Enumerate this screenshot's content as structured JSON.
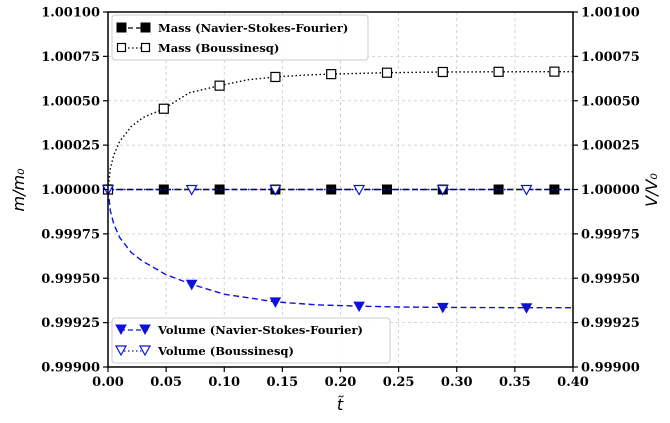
{
  "chart_data": {
    "type": "line",
    "xlabel": "t̃",
    "ylabel_left": "m/m₀",
    "ylabel_right": "V/V₀",
    "xlim": [
      0.0,
      0.4
    ],
    "ylim": [
      0.999,
      1.001
    ],
    "x_ticks": [
      "0.00",
      "0.05",
      "0.10",
      "0.15",
      "0.20",
      "0.25",
      "0.30",
      "0.35",
      "0.40"
    ],
    "y_ticks": [
      "0.99900",
      "0.99925",
      "0.99950",
      "0.99975",
      "1.00000",
      "1.00025",
      "1.00050",
      "1.00075",
      "1.00100"
    ],
    "grid": true,
    "legend_top": [
      "Mass (Navier-Stokes-Fourier)",
      "Mass (Boussinesq)"
    ],
    "legend_bottom": [
      "Volume (Navier-Stokes-Fourier)",
      "Volume (Boussinesq)"
    ],
    "series": [
      {
        "name": "Mass (Navier-Stokes-Fourier)",
        "color": "#000000",
        "marker": "square-filled",
        "line": "dashed",
        "curve": [
          [
            0.0,
            1.0
          ],
          [
            0.4,
            1.0
          ]
        ],
        "points": [
          [
            0.0,
            1.0
          ],
          [
            0.048,
            1.0
          ],
          [
            0.096,
            1.0
          ],
          [
            0.144,
            1.0
          ],
          [
            0.192,
            1.0
          ],
          [
            0.24,
            1.0
          ],
          [
            0.288,
            1.0
          ],
          [
            0.336,
            1.0
          ],
          [
            0.384,
            1.0
          ]
        ]
      },
      {
        "name": "Mass (Boussinesq)",
        "color": "#000000",
        "marker": "square-open",
        "line": "dotted",
        "curve": [
          [
            0.0,
            1.0
          ],
          [
            0.002,
            1.000118
          ],
          [
            0.005,
            1.000195
          ],
          [
            0.01,
            1.00027
          ],
          [
            0.02,
            1.000355
          ],
          [
            0.03,
            1.000405
          ],
          [
            0.048,
            1.000455
          ],
          [
            0.07,
            1.000545
          ],
          [
            0.096,
            1.000585
          ],
          [
            0.12,
            1.000618
          ],
          [
            0.144,
            1.000634
          ],
          [
            0.17,
            1.000645
          ],
          [
            0.192,
            1.00065
          ],
          [
            0.24,
            1.000658
          ],
          [
            0.288,
            1.000662
          ],
          [
            0.336,
            1.000663
          ],
          [
            0.384,
            1.000664
          ],
          [
            0.4,
            1.000664
          ]
        ],
        "points": [
          [
            0.0,
            1.0
          ],
          [
            0.048,
            1.000455
          ],
          [
            0.096,
            1.000585
          ],
          [
            0.144,
            1.000634
          ],
          [
            0.192,
            1.00065
          ],
          [
            0.24,
            1.000658
          ],
          [
            0.288,
            1.000662
          ],
          [
            0.336,
            1.000663
          ],
          [
            0.384,
            1.000664
          ]
        ]
      },
      {
        "name": "Volume (Navier-Stokes-Fourier)",
        "color": "#1010dd",
        "marker": "triangle-down-filled",
        "line": "dashed",
        "curve": [
          [
            0.0,
            1.0
          ],
          [
            0.002,
            0.99988
          ],
          [
            0.005,
            0.999805
          ],
          [
            0.01,
            0.99973
          ],
          [
            0.02,
            0.999645
          ],
          [
            0.03,
            0.999595
          ],
          [
            0.05,
            0.99952
          ],
          [
            0.072,
            0.999466
          ],
          [
            0.1,
            0.99941
          ],
          [
            0.144,
            0.999367
          ],
          [
            0.18,
            0.99935
          ],
          [
            0.216,
            0.999343
          ],
          [
            0.25,
            0.999338
          ],
          [
            0.288,
            0.999336
          ],
          [
            0.36,
            0.999334
          ],
          [
            0.4,
            0.999334
          ]
        ],
        "points": [
          [
            0.0,
            1.0
          ],
          [
            0.072,
            0.999466
          ],
          [
            0.144,
            0.999367
          ],
          [
            0.216,
            0.999343
          ],
          [
            0.288,
            0.999336
          ],
          [
            0.36,
            0.999334
          ]
        ]
      },
      {
        "name": "Volume (Boussinesq)",
        "color": "#1010dd",
        "marker": "triangle-down-open",
        "line": "dotted",
        "curve": [
          [
            0.0,
            1.0
          ],
          [
            0.4,
            1.0
          ]
        ],
        "points": [
          [
            0.0,
            1.0
          ],
          [
            0.072,
            1.0
          ],
          [
            0.144,
            1.0
          ],
          [
            0.216,
            1.0
          ],
          [
            0.288,
            1.0
          ],
          [
            0.36,
            1.0
          ]
        ]
      }
    ]
  }
}
